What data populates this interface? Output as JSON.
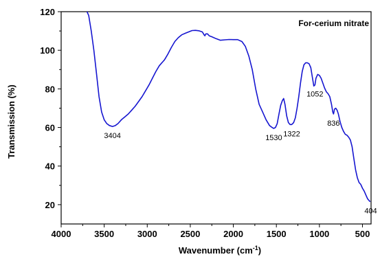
{
  "chart_data": {
    "type": "line",
    "title": "",
    "xlabel": "Wavenumber (cm",
    "xlabel_sup": "-1",
    "xlabel_close": ")",
    "ylabel": "Transmission (%)",
    "xlim": [
      4000,
      400
    ],
    "ylim": [
      10,
      120
    ],
    "x_ticks": [
      4000,
      3500,
      3000,
      2500,
      2000,
      1500,
      1000,
      500
    ],
    "x_tick_labels": [
      "4000",
      "3500",
      "3000",
      "2500",
      "2000",
      "1500",
      "1000",
      "500"
    ],
    "y_ticks": [
      20,
      40,
      60,
      80,
      100,
      120
    ],
    "y_tick_labels": [
      "20",
      "40",
      "60",
      "80",
      "100",
      "120"
    ],
    "grid": false,
    "series": [
      {
        "name": "For-cerium nitrate",
        "color": "#1515d0",
        "points": [
          [
            3700,
            120
          ],
          [
            3680,
            118
          ],
          [
            3650,
            110
          ],
          [
            3620,
            100
          ],
          [
            3590,
            88
          ],
          [
            3560,
            76
          ],
          [
            3530,
            68
          ],
          [
            3500,
            64
          ],
          [
            3470,
            62
          ],
          [
            3440,
            61
          ],
          [
            3404,
            60.5
          ],
          [
            3370,
            61
          ],
          [
            3340,
            62
          ],
          [
            3300,
            64
          ],
          [
            3260,
            65.5
          ],
          [
            3220,
            67
          ],
          [
            3180,
            69
          ],
          [
            3140,
            71
          ],
          [
            3100,
            73.5
          ],
          [
            3060,
            76
          ],
          [
            3020,
            79
          ],
          [
            2980,
            82
          ],
          [
            2940,
            85.5
          ],
          [
            2900,
            89
          ],
          [
            2860,
            92
          ],
          [
            2840,
            93
          ],
          [
            2820,
            94
          ],
          [
            2800,
            95
          ],
          [
            2760,
            98
          ],
          [
            2720,
            101.5
          ],
          [
            2680,
            104.5
          ],
          [
            2640,
            106.5
          ],
          [
            2600,
            108
          ],
          [
            2560,
            108.8
          ],
          [
            2520,
            109.5
          ],
          [
            2480,
            110.2
          ],
          [
            2440,
            110.3
          ],
          [
            2400,
            110.1
          ],
          [
            2360,
            109.5
          ],
          [
            2340,
            108
          ],
          [
            2330,
            107.5
          ],
          [
            2320,
            108.5
          ],
          [
            2300,
            108.5
          ],
          [
            2280,
            107.5
          ],
          [
            2250,
            107
          ],
          [
            2200,
            106
          ],
          [
            2150,
            105.2
          ],
          [
            2100,
            105.4
          ],
          [
            2050,
            105.6
          ],
          [
            2000,
            105.5
          ],
          [
            1950,
            105.5
          ],
          [
            1900,
            104.5
          ],
          [
            1860,
            102
          ],
          [
            1820,
            97
          ],
          [
            1780,
            90
          ],
          [
            1740,
            80
          ],
          [
            1700,
            72
          ],
          [
            1660,
            68
          ],
          [
            1620,
            64
          ],
          [
            1580,
            61
          ],
          [
            1550,
            60
          ],
          [
            1530,
            59.5
          ],
          [
            1510,
            60
          ],
          [
            1490,
            62
          ],
          [
            1470,
            67
          ],
          [
            1450,
            71.5
          ],
          [
            1430,
            74
          ],
          [
            1415,
            75
          ],
          [
            1400,
            72
          ],
          [
            1380,
            66
          ],
          [
            1360,
            62.5
          ],
          [
            1340,
            61.5
          ],
          [
            1322,
            61.5
          ],
          [
            1300,
            62.5
          ],
          [
            1280,
            65
          ],
          [
            1260,
            70
          ],
          [
            1240,
            76
          ],
          [
            1220,
            83
          ],
          [
            1200,
            89
          ],
          [
            1180,
            92.5
          ],
          [
            1160,
            93.5
          ],
          [
            1140,
            93.5
          ],
          [
            1120,
            93
          ],
          [
            1100,
            91
          ],
          [
            1080,
            85.5
          ],
          [
            1065,
            81.5
          ],
          [
            1052,
            82
          ],
          [
            1040,
            85.5
          ],
          [
            1020,
            87.5
          ],
          [
            1000,
            87
          ],
          [
            980,
            85.5
          ],
          [
            960,
            83
          ],
          [
            940,
            80.5
          ],
          [
            920,
            78.5
          ],
          [
            900,
            77.5
          ],
          [
            880,
            76
          ],
          [
            860,
            72
          ],
          [
            845,
            68
          ],
          [
            836,
            67
          ],
          [
            825,
            69.5
          ],
          [
            810,
            70
          ],
          [
            795,
            69
          ],
          [
            780,
            67
          ],
          [
            760,
            63
          ],
          [
            740,
            60
          ],
          [
            720,
            58
          ],
          [
            700,
            56.5
          ],
          [
            680,
            56
          ],
          [
            660,
            55
          ],
          [
            640,
            53.5
          ],
          [
            620,
            50
          ],
          [
            600,
            44
          ],
          [
            580,
            38
          ],
          [
            560,
            34
          ],
          [
            540,
            31.5
          ],
          [
            520,
            30.5
          ],
          [
            500,
            28.5
          ],
          [
            480,
            27
          ],
          [
            460,
            25
          ],
          [
            440,
            23
          ],
          [
            420,
            22
          ],
          [
            410,
            21.5
          ]
        ]
      }
    ],
    "legend": {
      "label": "For-cerium nitrate",
      "placement": "top-right"
    },
    "annotations": [
      {
        "text": "3404",
        "x": 3404,
        "y": 60.5,
        "position": "below"
      },
      {
        "text": "1530",
        "x": 1530,
        "y": 59.5,
        "position": "below"
      },
      {
        "text": "1322",
        "x": 1322,
        "y": 61.5,
        "position": "below"
      },
      {
        "text": "1052",
        "x": 1052,
        "y": 82,
        "position": "below"
      },
      {
        "text": "836",
        "x": 836,
        "y": 67,
        "position": "below"
      },
      {
        "text": "404",
        "x": 404,
        "y": 21.5,
        "position": "below"
      }
    ]
  }
}
